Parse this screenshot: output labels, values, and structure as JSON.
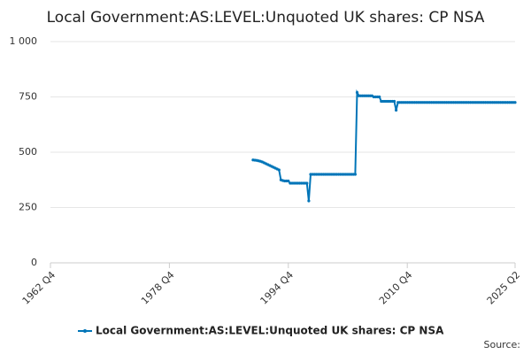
{
  "chart_data": {
    "type": "line",
    "title": "Local Government:AS:LEVEL:Unquoted UK shares: CP NSA",
    "source": "Source:",
    "xlim": [
      "1962 Q4",
      "2025 Q2"
    ],
    "xticks": [
      "1962 Q4",
      "1978 Q4",
      "1994 Q4",
      "2010 Q4",
      "2025 Q2"
    ],
    "ylim": [
      0,
      1000
    ],
    "yticks": [
      0,
      250,
      500,
      750,
      {
        "value": 1000,
        "label": "1 000"
      }
    ],
    "grid": true,
    "x": [
      "1990 Q1",
      "1990 Q2",
      "1990 Q3",
      "1990 Q4",
      "1991 Q1",
      "1991 Q2",
      "1991 Q3",
      "1991 Q4",
      "1992 Q1",
      "1992 Q2",
      "1992 Q3",
      "1992 Q4",
      "1993 Q1",
      "1993 Q2",
      "1993 Q3",
      "1993 Q4",
      "1994 Q1",
      "1994 Q2",
      "1994 Q3",
      "1994 Q4",
      "1995 Q1",
      "1995 Q2",
      "1995 Q3",
      "1995 Q4",
      "1996 Q1",
      "1996 Q2",
      "1996 Q3",
      "1996 Q4",
      "1997 Q1",
      "1997 Q2",
      "1997 Q3",
      "1997 Q4",
      "1998 Q1",
      "1998 Q2",
      "1998 Q3",
      "1998 Q4",
      "1999 Q1",
      "1999 Q2",
      "1999 Q3",
      "1999 Q4",
      "2000 Q1",
      "2000 Q2",
      "2000 Q3",
      "2000 Q4",
      "2001 Q1",
      "2001 Q2",
      "2001 Q3",
      "2001 Q4",
      "2002 Q1",
      "2002 Q2",
      "2002 Q3",
      "2002 Q4",
      "2003 Q1",
      "2003 Q2",
      "2003 Q3",
      "2003 Q4",
      "2004 Q1",
      "2004 Q2",
      "2004 Q3",
      "2004 Q4",
      "2005 Q1",
      "2005 Q2",
      "2005 Q3",
      "2005 Q4",
      "2006 Q1",
      "2006 Q2",
      "2006 Q3",
      "2006 Q4",
      "2007 Q1",
      "2007 Q2",
      "2007 Q3",
      "2007 Q4",
      "2008 Q1",
      "2008 Q2",
      "2008 Q3",
      "2008 Q4",
      "2009 Q1",
      "2009 Q2",
      "2009 Q3",
      "2009 Q4",
      "2010 Q1",
      "2010 Q2",
      "2010 Q3",
      "2010 Q4",
      "2011 Q1",
      "2011 Q2",
      "2011 Q3",
      "2011 Q4",
      "2012 Q1",
      "2012 Q2",
      "2012 Q3",
      "2012 Q4",
      "2013 Q1",
      "2013 Q2",
      "2013 Q3",
      "2013 Q4",
      "2014 Q1",
      "2014 Q2",
      "2014 Q3",
      "2014 Q4",
      "2015 Q1",
      "2015 Q2",
      "2015 Q3",
      "2015 Q4",
      "2016 Q1",
      "2016 Q2",
      "2016 Q3",
      "2016 Q4",
      "2017 Q1",
      "2017 Q2",
      "2017 Q3",
      "2017 Q4",
      "2018 Q1",
      "2018 Q2",
      "2018 Q3",
      "2018 Q4",
      "2019 Q1",
      "2019 Q2",
      "2019 Q3",
      "2019 Q4",
      "2020 Q1",
      "2020 Q2",
      "2020 Q3",
      "2020 Q4",
      "2021 Q1",
      "2021 Q2",
      "2021 Q3",
      "2021 Q4",
      "2022 Q1",
      "2022 Q2",
      "2022 Q3",
      "2022 Q4",
      "2023 Q1",
      "2023 Q2",
      "2023 Q3",
      "2023 Q4",
      "2024 Q1",
      "2024 Q2",
      "2024 Q3",
      "2024 Q4",
      "2025 Q1",
      "2025 Q2"
    ],
    "series": [
      {
        "name": "Local Government:AS:LEVEL:Unquoted UK shares: CP NSA",
        "color": "#0075b8",
        "values": [
          465,
          464,
          463,
          461,
          459,
          456,
          452,
          448,
          444,
          440,
          436,
          432,
          428,
          424,
          420,
          375,
          372,
          370,
          370,
          370,
          360,
          360,
          360,
          360,
          360,
          360,
          360,
          360,
          360,
          360,
          280,
          400,
          400,
          400,
          400,
          400,
          400,
          400,
          400,
          400,
          400,
          400,
          400,
          400,
          400,
          400,
          400,
          400,
          400,
          400,
          400,
          400,
          400,
          400,
          400,
          400,
          770,
          755,
          755,
          755,
          755,
          755,
          755,
          755,
          755,
          750,
          750,
          750,
          750,
          730,
          730,
          730,
          730,
          730,
          730,
          730,
          730,
          690,
          725,
          725,
          725,
          725,
          725,
          725,
          725,
          725,
          725,
          725,
          725,
          725,
          725,
          725,
          725,
          725,
          725,
          725,
          725,
          725,
          725,
          725,
          725,
          725,
          725,
          725,
          725,
          725,
          725,
          725,
          725,
          725,
          725,
          725,
          725,
          725,
          725,
          725,
          725,
          725,
          725,
          725,
          725,
          725,
          725,
          725,
          725,
          725,
          725,
          725,
          725,
          725,
          725,
          725,
          725,
          725,
          725,
          725,
          725,
          725,
          725,
          725,
          725,
          725
        ]
      }
    ]
  }
}
